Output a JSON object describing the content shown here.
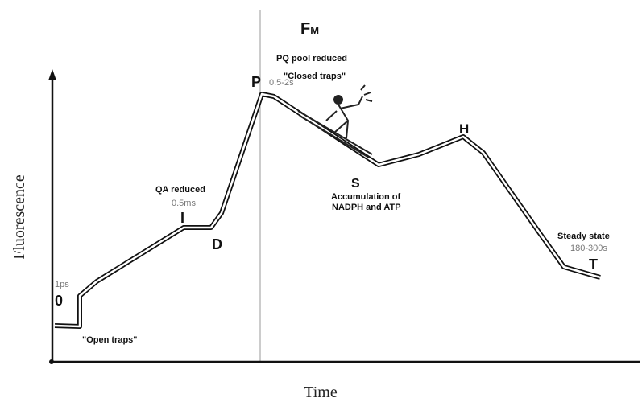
{
  "axes": {
    "y_label": "Fluorescence",
    "x_label": "Time"
  },
  "peak": {
    "main": "F",
    "sub": "M",
    "note1": "PQ pool reduced",
    "note2": "\"Closed traps\""
  },
  "points": [
    {
      "label": "0",
      "time": "1ps",
      "note": "\"Open traps\""
    },
    {
      "label": "I",
      "time": "0.5ms",
      "note": "QA reduced"
    },
    {
      "label": "D"
    },
    {
      "label": "P",
      "time": "0.5-2s"
    },
    {
      "label": "S",
      "note1": "Accumulation of",
      "note2": "NADPH and ATP"
    },
    {
      "label": "H"
    },
    {
      "label": "T",
      "time": "180-300s",
      "note": "Steady state"
    }
  ]
}
